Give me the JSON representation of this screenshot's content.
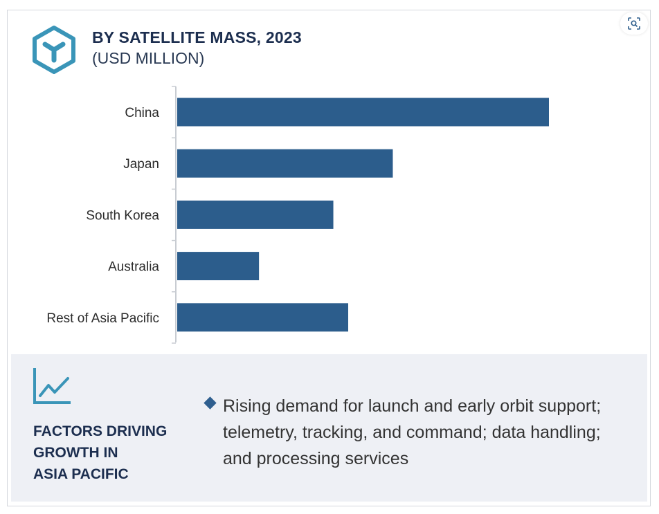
{
  "header": {
    "title": "BY SATELLITE MASS, 2023",
    "subtitle": "(USD MILLION)"
  },
  "icons": {
    "logo": "hexagon-y-logo-icon",
    "zoom": "zoom-scan-icon",
    "trend": "trend-chart-icon",
    "bullet": "diamond-bullet-icon"
  },
  "colors": {
    "bar": "#2c5d8c",
    "logo": "#3a95b8",
    "title": "#1c2e4f",
    "panel_bg": "#eef0f5"
  },
  "chart_data": {
    "type": "bar",
    "orientation": "horizontal",
    "title": "BY SATELLITE MASS, 2023",
    "subtitle": "(USD MILLION)",
    "categories": [
      "China",
      "Japan",
      "South Korea",
      "Australia",
      "Rest of Asia Pacific"
    ],
    "values": [
      100,
      58,
      42,
      22,
      46
    ],
    "xlabel": "",
    "ylabel": "",
    "xlim": [
      0,
      100
    ],
    "grid": false,
    "axis_labels_shown": false
  },
  "factors": {
    "heading_lines": [
      "FACTORS DRIVING",
      "GROWTH IN",
      "ASIA PACIFIC"
    ],
    "bullet": "Rising demand for launch and early orbit support; telemetry, tracking, and command; data handling; and processing services"
  }
}
